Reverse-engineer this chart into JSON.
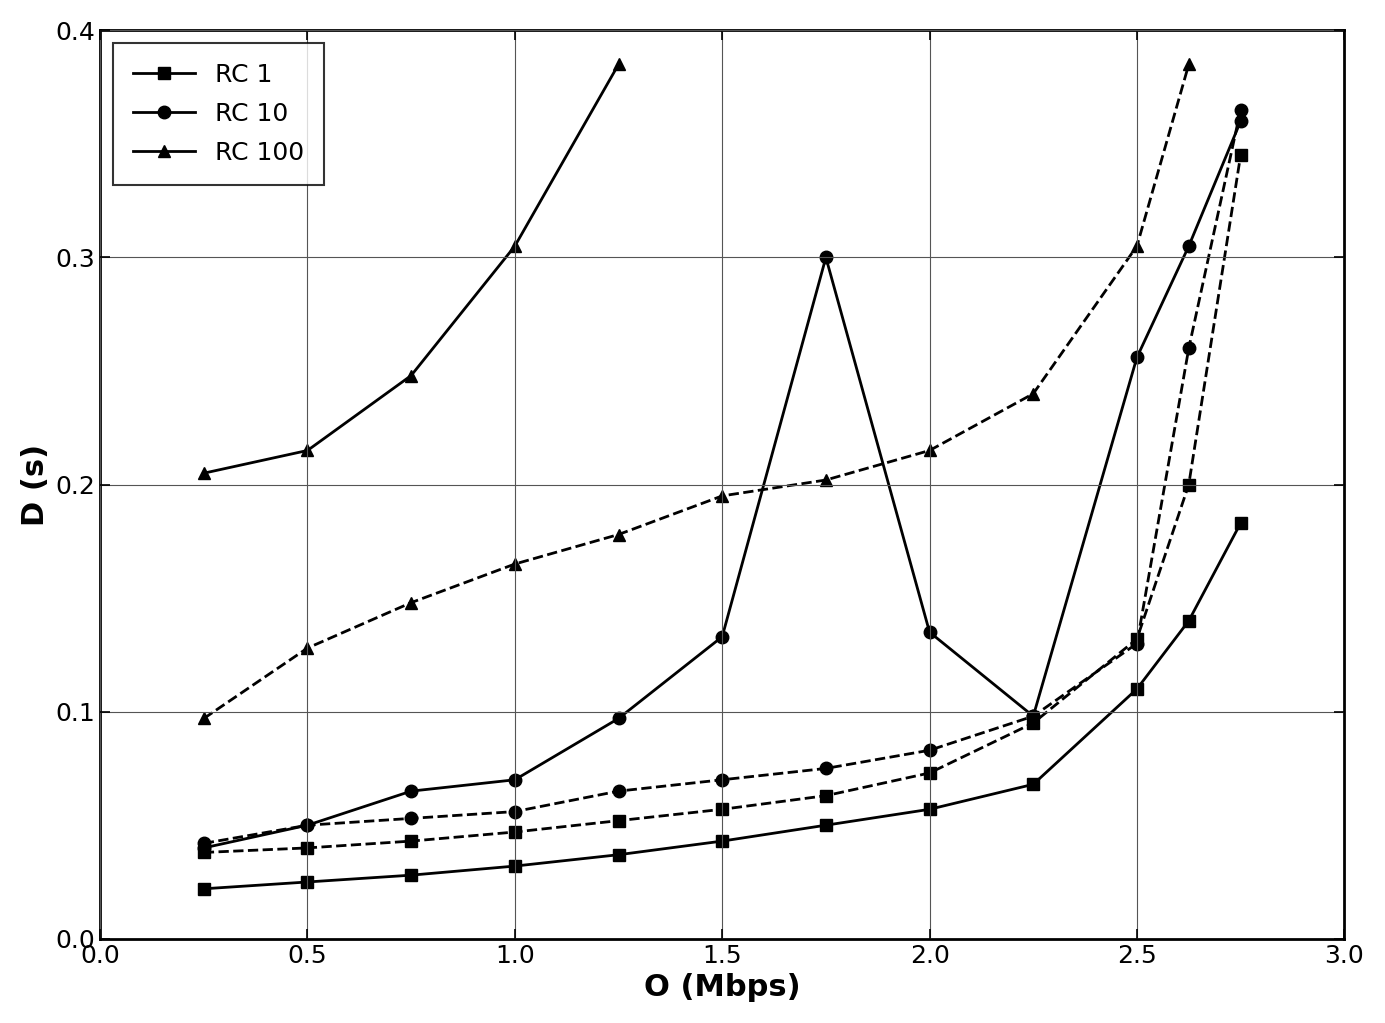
{
  "title": "",
  "xlabel": "O (Mbps)",
  "ylabel": "D (s)",
  "xlim": [
    0.0,
    3.0
  ],
  "ylim": [
    0.0,
    0.4
  ],
  "xticks": [
    0.0,
    0.5,
    1.0,
    1.5,
    2.0,
    2.5,
    3.0
  ],
  "yticks": [
    0.0,
    0.1,
    0.2,
    0.3,
    0.4
  ],
  "background_color": "#ffffff",
  "series": [
    {
      "label": "RC 1 solid",
      "marker": "s",
      "ls": "-",
      "x": [
        0.25,
        0.5,
        0.75,
        1.0,
        1.25,
        1.5,
        1.75,
        2.0,
        2.25,
        2.5,
        2.625,
        2.75
      ],
      "y": [
        0.022,
        0.025,
        0.028,
        0.032,
        0.037,
        0.043,
        0.05,
        0.057,
        0.068,
        0.11,
        0.14,
        0.183
      ]
    },
    {
      "label": "RC 1 dashed",
      "marker": "s",
      "ls": "--",
      "x": [
        0.25,
        0.5,
        0.75,
        1.0,
        1.25,
        1.5,
        1.75,
        2.0,
        2.25,
        2.5,
        2.625,
        2.75
      ],
      "y": [
        0.038,
        0.04,
        0.043,
        0.047,
        0.052,
        0.057,
        0.063,
        0.073,
        0.095,
        0.132,
        0.2,
        0.345
      ]
    },
    {
      "label": "RC 10 solid",
      "marker": "o",
      "ls": "-",
      "x": [
        0.25,
        0.5,
        0.75,
        1.0,
        1.25,
        1.5,
        1.75,
        2.0,
        2.25,
        2.5,
        2.625,
        2.75
      ],
      "y": [
        0.04,
        0.05,
        0.065,
        0.07,
        0.097,
        0.133,
        0.3,
        0.135,
        0.098,
        0.256,
        0.305,
        0.36
      ]
    },
    {
      "label": "RC 10 dashed",
      "marker": "o",
      "ls": "--",
      "x": [
        0.25,
        0.5,
        0.75,
        1.0,
        1.25,
        1.5,
        1.75,
        2.0,
        2.25,
        2.5,
        2.625,
        2.75
      ],
      "y": [
        0.042,
        0.05,
        0.053,
        0.056,
        0.065,
        0.07,
        0.075,
        0.083,
        0.098,
        0.13,
        0.26,
        0.365
      ]
    },
    {
      "label": "RC 100 solid",
      "marker": "^",
      "ls": "-",
      "x": [
        0.25,
        0.5,
        0.75,
        1.0,
        1.25
      ],
      "y": [
        0.205,
        0.215,
        0.248,
        0.305,
        0.385
      ]
    },
    {
      "label": "RC 100 dashed",
      "marker": "^",
      "ls": "--",
      "x": [
        0.25,
        0.5,
        0.75,
        1.0,
        1.25,
        1.5,
        1.75,
        2.0,
        2.25,
        2.5,
        2.625
      ],
      "y": [
        0.097,
        0.128,
        0.148,
        0.165,
        0.178,
        0.195,
        0.202,
        0.215,
        0.24,
        0.305,
        0.385
      ]
    }
  ],
  "legend_labels": [
    "RC 1",
    "RC 10",
    "RC 100"
  ],
  "legend_markers": [
    "s",
    "o",
    "^"
  ],
  "line_color": "#000000",
  "marker_size": 9,
  "linewidth": 2.0,
  "legend_fontsize": 18,
  "axis_label_fontsize": 22,
  "tick_fontsize": 18
}
